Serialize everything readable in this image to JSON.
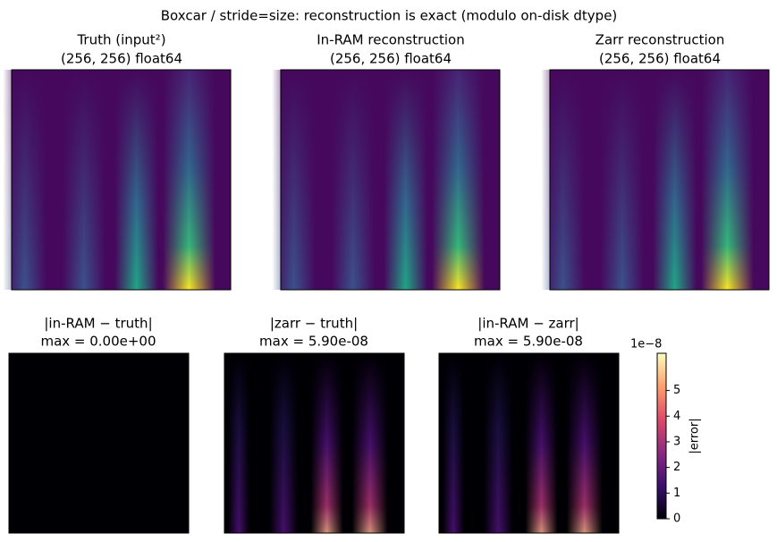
{
  "figure": {
    "title": "Boxcar / stride=size: reconstruction is exact (modulo on-disk dtype)",
    "top_panels": [
      {
        "title": [
          "Truth (input²)",
          "(256, 256) float64"
        ]
      },
      {
        "title": [
          "In-RAM reconstruction",
          "(256, 256) float64"
        ]
      },
      {
        "title": [
          "Zarr reconstruction",
          "(256, 256) float64"
        ]
      }
    ],
    "bottom_panels": [
      {
        "title": [
          "|in-RAM − truth|",
          "max = 0.00e+00"
        ]
      },
      {
        "title": [
          "|zarr − truth|",
          "max = 5.90e-08"
        ]
      },
      {
        "title": [
          "|in-RAM − zarr|",
          "max = 5.90e-08"
        ]
      }
    ],
    "colorbar": {
      "label": "|error|",
      "offset": "1e−8",
      "lim": [
        0,
        6.45
      ],
      "ticks": [
        0,
        1,
        2,
        3,
        4,
        5
      ]
    }
  }
}
